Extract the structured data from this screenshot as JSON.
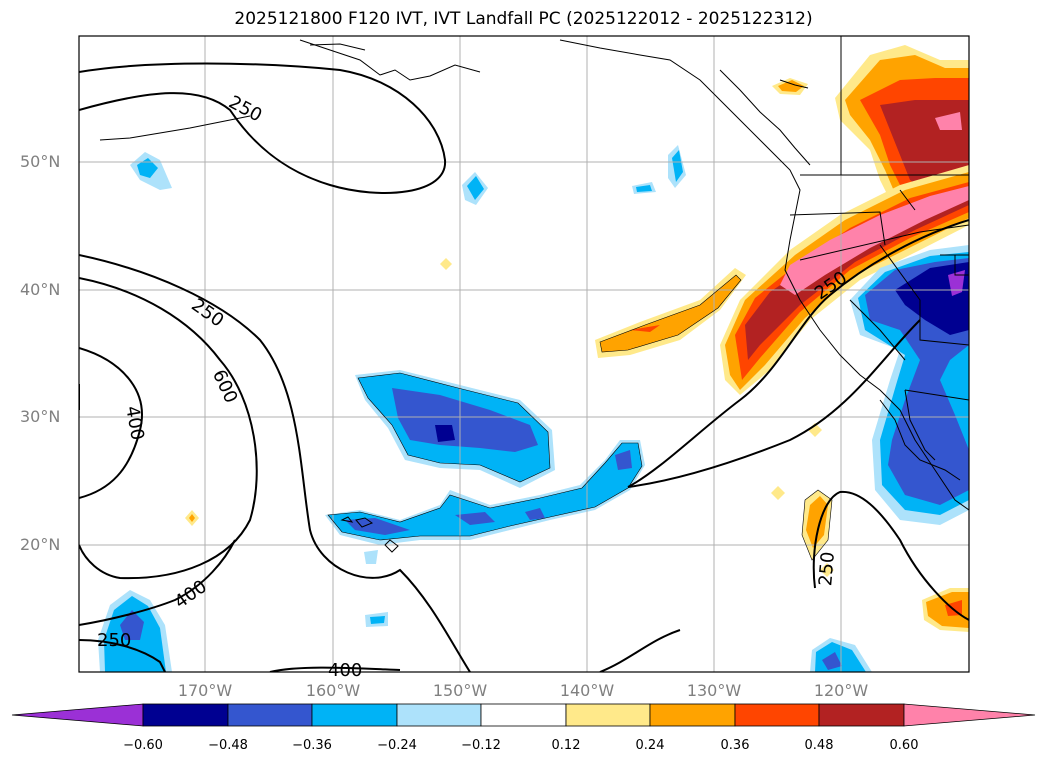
{
  "title": "2025121800 F120 IVT, IVT Landfall PC (2025122012 - 2025122312)",
  "map": {
    "lat_labels": [
      "50°N",
      "40°N",
      "30°N",
      "20°N"
    ],
    "lon_labels": [
      "170°W",
      "160°W",
      "150°W",
      "140°W",
      "130°W",
      "120°W"
    ],
    "contour_labels": [
      "250",
      "250",
      "600",
      "400",
      "400",
      "250",
      "400",
      "250",
      "250"
    ]
  },
  "colorbar": {
    "ticks": [
      "−0.60",
      "−0.48",
      "−0.36",
      "−0.24",
      "−0.12",
      "0.12",
      "0.24",
      "0.36",
      "0.48",
      "0.60"
    ],
    "colors": [
      "#9b30d6",
      "#000091",
      "#3456cf",
      "#00b3f6",
      "#ade2fb",
      "#ffffff",
      "#ffe98a",
      "#ffa300",
      "#ff4500",
      "#b22222",
      "#ff82aa"
    ]
  }
}
